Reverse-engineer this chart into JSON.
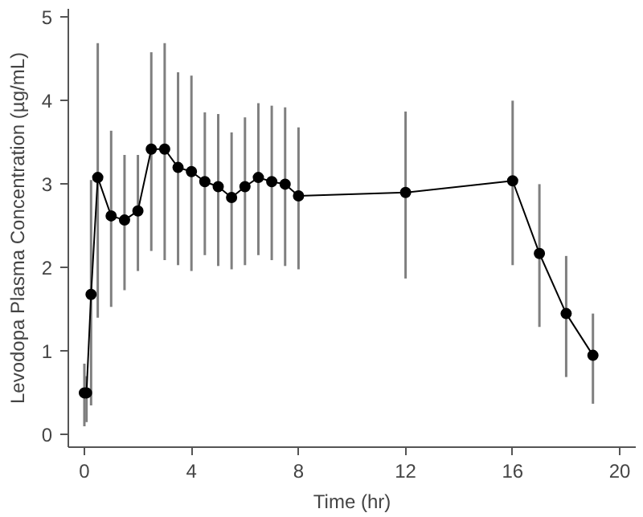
{
  "chart_data": {
    "type": "line",
    "xlabel": "Time (hr)",
    "ylabel": "Levodopa Plasma Concentration (µg/mL)",
    "x": [
      0,
      0.08,
      0.25,
      0.5,
      1,
      1.5,
      2,
      2.5,
      3,
      3.5,
      4,
      4.5,
      5,
      5.5,
      6,
      6.5,
      7,
      7.5,
      8,
      12,
      16,
      17,
      18,
      19
    ],
    "series": [
      {
        "color": "#000000",
        "values": [
          0.5,
          0.5,
          1.68,
          3.08,
          2.62,
          2.57,
          2.68,
          3.42,
          3.42,
          3.2,
          3.15,
          3.03,
          2.97,
          2.84,
          2.97,
          3.08,
          3.03,
          3.0,
          2.86,
          2.9,
          3.04,
          2.17,
          1.45,
          0.95
        ],
        "errors": [
          [
            0.1,
            0.85
          ],
          [
            0.15,
            0.7
          ],
          [
            0.35,
            3.05
          ],
          [
            1.4,
            4.69
          ],
          [
            1.53,
            3.64
          ],
          [
            1.73,
            3.35
          ],
          [
            1.96,
            3.35
          ],
          [
            2.2,
            4.58
          ],
          [
            2.09,
            4.69
          ],
          [
            2.03,
            4.34
          ],
          [
            1.96,
            4.3
          ],
          [
            2.15,
            3.86
          ],
          [
            2.02,
            3.84
          ],
          [
            1.98,
            3.62
          ],
          [
            2.03,
            3.8
          ],
          [
            2.15,
            3.97
          ],
          [
            2.09,
            3.94
          ],
          [
            2.02,
            3.92
          ],
          [
            1.98,
            3.68
          ],
          [
            1.87,
            3.87
          ],
          [
            2.03,
            4.0
          ],
          [
            1.29,
            3.0
          ],
          [
            0.69,
            2.14
          ],
          [
            0.37,
            1.45
          ]
        ]
      }
    ],
    "xlim": [
      -0.6,
      20.6
    ],
    "ylim": [
      -0.15,
      5.1
    ],
    "xticks": [
      0,
      4,
      8,
      12,
      16,
      20
    ],
    "yticks": [
      0,
      1,
      2,
      3,
      4,
      5
    ],
    "grid": false,
    "marker": "circle",
    "line_style": "solid"
  }
}
